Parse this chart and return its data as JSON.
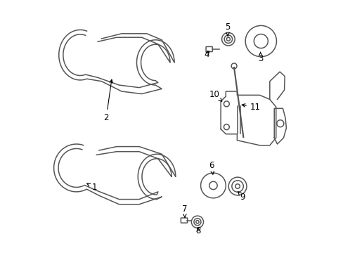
{
  "bg_color": "#ffffff",
  "line_color": "#555555",
  "text_color": "#000000",
  "figsize": [
    4.89,
    3.6
  ],
  "dpi": 100
}
